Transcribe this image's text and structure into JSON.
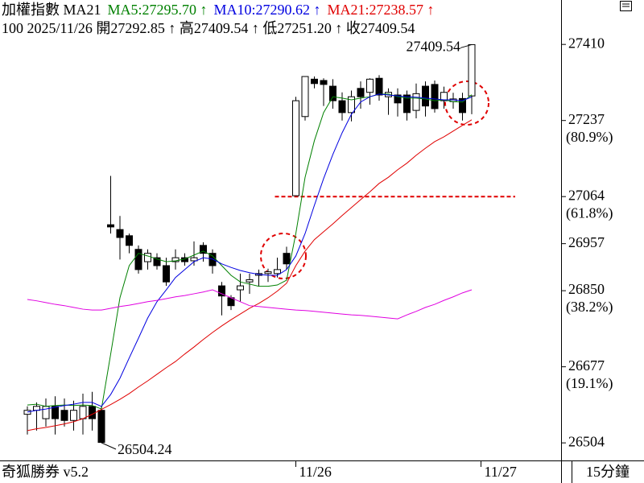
{
  "chart_data": {
    "type": "candlestick",
    "title": "加權指數 MA21",
    "subtitle": "100 2025/11/26 開27292.85 ↑ 高27409.54 ↑ 低27251.20 ↑ 收27409.54",
    "footer_left": "奇狐勝券 v5.2",
    "footer_right": "15分鐘",
    "categories": [
      null,
      null,
      null,
      null,
      null,
      null,
      null,
      null,
      null,
      null,
      null,
      null,
      null,
      null,
      null,
      null,
      null,
      null,
      null,
      null,
      null,
      null,
      null,
      null,
      null,
      null,
      null,
      null,
      null,
      "11/26",
      null,
      null,
      null,
      null,
      null,
      null,
      null,
      null,
      null,
      null,
      null,
      null,
      null,
      null,
      null,
      null,
      null,
      null,
      null,
      "11/27"
    ],
    "open": [
      26569,
      26578,
      26559,
      26587,
      26578,
      26555,
      26559,
      26587,
      26578,
      27000,
      26989,
      26975,
      26944,
      26916,
      26925,
      26907,
      26916,
      26925,
      26918,
      26953,
      26935,
      26861,
      26834,
      26852,
      26870,
      26885,
      26889,
      26889,
      26935,
      27066,
      27246,
      27331,
      27328,
      27315,
      27282,
      27255,
      27310,
      27301,
      27333,
      27291,
      27295,
      27295,
      27260,
      27315,
      27319,
      27282,
      27280,
      27287,
      27292.85,
      null
    ],
    "high": [
      26587,
      26596,
      26605,
      26610,
      26605,
      26600,
      26616,
      26620,
      26587,
      27111,
      27020,
      26980,
      26953,
      26944,
      26935,
      26925,
      26944,
      26935,
      26962,
      26960,
      26944,
      26870,
      26840,
      26889,
      26889,
      26898,
      26900,
      26925,
      26950,
      27291,
      27337,
      27337,
      27333,
      27331,
      27301,
      27305,
      27326,
      27333,
      27340,
      27310,
      27310,
      27305,
      27321,
      27326,
      27328,
      27314,
      27300,
      27300,
      27409.54,
      null
    ],
    "low": [
      26523,
      26532,
      26541,
      26523,
      26541,
      26532,
      26523,
      26532,
      26504.24,
      26980,
      26921,
      26935,
      26889,
      26898,
      26898,
      26861,
      26898,
      26907,
      26907,
      26916,
      26889,
      26794,
      26806,
      26825,
      26843,
      26860,
      26870,
      26880,
      26898,
      27066,
      27237,
      27310,
      27270,
      27264,
      27237,
      27235,
      27264,
      27273,
      27282,
      27250,
      27246,
      27237,
      27242,
      27246,
      27255,
      27264,
      27264,
      27237,
      27251.2,
      null
    ],
    "close": [
      26578,
      26587,
      26587,
      26559,
      26555,
      26578,
      26587,
      26559,
      26505,
      26995,
      26971,
      26953,
      26898,
      26935,
      26907,
      26870,
      26925,
      26916,
      26925,
      26935,
      26907,
      26838,
      26816,
      26861,
      26875,
      26889,
      26893,
      26898,
      26911,
      27282,
      27337,
      27321,
      27319,
      27282,
      27255,
      27291,
      27291,
      27331,
      27295,
      27301,
      27277,
      27255,
      27298,
      27270,
      27264,
      27301,
      27286,
      27255,
      27409.54,
      null
    ],
    "up_color": "#ffffff",
    "down_color": "#000000",
    "series": [
      {
        "name": "MA5:27295.70 ↑",
        "color": "#008000",
        "values": [
          26590,
          26592,
          26587,
          26589,
          26590,
          26589,
          26590,
          26589,
          26581,
          26706,
          26834,
          26907,
          26935,
          26929,
          26922,
          26916,
          26918,
          26922,
          26931,
          26940,
          26929,
          26907,
          26885,
          26870,
          26865,
          26860,
          26860,
          26863,
          26874,
          26980,
          27108,
          27191,
          27255,
          27291,
          27288,
          27284,
          27288,
          27291,
          27297,
          27297,
          27291,
          27288,
          27288,
          27286,
          27282,
          27284,
          27280,
          27279,
          27295.7,
          null
        ]
      },
      {
        "name": "MA10:27290.62 ↑",
        "color": "#0000e0",
        "values": [
          26574,
          26578,
          26581,
          26585,
          26589,
          26592,
          26596,
          26596,
          26587,
          26614,
          26651,
          26697,
          26742,
          26788,
          26825,
          26852,
          26880,
          26898,
          26916,
          26925,
          26922,
          26911,
          26903,
          26896,
          26891,
          26887,
          26885,
          26885,
          26898,
          26929,
          26980,
          27044,
          27105,
          27160,
          27209,
          27251,
          27279,
          27291,
          27297,
          27295,
          27293,
          27291,
          27290,
          27288,
          27286,
          27284,
          27284,
          27282,
          27290.62,
          null
        ]
      },
      {
        "name": "MA21:27238.57 ↑",
        "color": "#e00000",
        "values": [
          26532,
          26536,
          26539,
          26543,
          26547,
          26552,
          26559,
          26569,
          26580,
          26591,
          26603,
          26616,
          26631,
          26645,
          26660,
          26675,
          26689,
          26706,
          26722,
          26739,
          26755,
          26770,
          26784,
          26797,
          26810,
          26821,
          26834,
          26849,
          26867,
          26907,
          26940,
          26966,
          26984,
          27002,
          27021,
          27039,
          27057,
          27075,
          27094,
          27108,
          27125,
          27140,
          27158,
          27174,
          27189,
          27200,
          27213,
          27226,
          27238.57,
          null
        ]
      },
      {
        "color": "#e000e0",
        "values": [
          26830,
          26827,
          26823,
          26819,
          26816,
          26812,
          26808,
          26806,
          26806,
          26810,
          26814,
          26817,
          26821,
          26825,
          26828,
          26832,
          26836,
          26839,
          26843,
          26847,
          26852,
          26843,
          26834,
          26825,
          26816,
          26814,
          26812,
          26810,
          26808,
          26806,
          26805,
          26803,
          26801,
          26799,
          26797,
          26795,
          26794,
          26792,
          26790,
          26788,
          26786,
          26795,
          26803,
          26812,
          26819,
          26828,
          26836,
          26845,
          26852,
          null
        ]
      }
    ],
    "annotations": [
      {
        "text": "27409.54"
      },
      {
        "text": "26504.24"
      }
    ],
    "hline": {
      "value": 27064,
      "color": "#e00000"
    },
    "ylim": [
      26464,
      27511
    ],
    "yticks": [
      26504,
      26677,
      26850,
      26957,
      27064,
      27237,
      27410
    ],
    "fib_labels": [
      {
        "value": 26677,
        "label": "(19.1%)"
      },
      {
        "value": 26850,
        "label": "(38.2%)"
      },
      {
        "value": 27064,
        "label": "(61.8%)"
      },
      {
        "value": 27237,
        "label": "(80.9%)"
      }
    ]
  }
}
